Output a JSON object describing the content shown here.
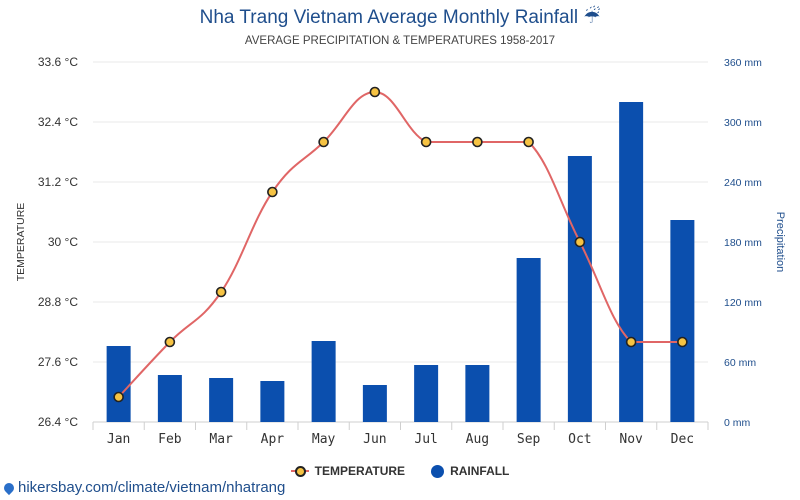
{
  "title": "Nha Trang Vietnam Average Monthly Rainfall ☔",
  "subtitle": "AVERAGE PRECIPITATION & TEMPERATURES 1958-2017",
  "source": "hikersbay.com/climate/vietnam/nhatrang",
  "colors": {
    "bar": "#0b4fae",
    "line": "#e06666",
    "marker": "#f6c343",
    "title": "#1f4e8c"
  },
  "chart_data": {
    "type": "bar+line",
    "categories": [
      "Jan",
      "Feb",
      "Mar",
      "Apr",
      "May",
      "Jun",
      "Jul",
      "Aug",
      "Sep",
      "Oct",
      "Nov",
      "Dec"
    ],
    "series": [
      {
        "name": "TEMPERATURE",
        "axis": "left",
        "type": "line",
        "values": [
          26.9,
          28.0,
          29.0,
          31.0,
          32.0,
          33.0,
          32.0,
          32.0,
          32.0,
          30.0,
          28.0,
          28.0
        ]
      },
      {
        "name": "RAINFALL",
        "axis": "right",
        "type": "bar",
        "values": [
          76,
          47,
          44,
          41,
          81,
          37,
          57,
          57,
          164,
          266,
          320,
          202
        ]
      }
    ],
    "ylabel_left": "TEMPERATURE",
    "ylabel_right": "Precipitation",
    "ylim_left": [
      26.4,
      33.6
    ],
    "ylim_right": [
      0,
      360
    ],
    "yticks_left": [
      "26.4 °C",
      "27.6 °C",
      "28.8 °C",
      "30 °C",
      "31.2 °C",
      "32.4 °C",
      "33.6 °C"
    ],
    "yticks_right": [
      "0 mm",
      "60 mm",
      "120 mm",
      "180 mm",
      "240 mm",
      "300 mm",
      "360 mm"
    ],
    "legend": [
      "TEMPERATURE",
      "RAINFALL"
    ],
    "legend_position": "bottom-center",
    "grid": true
  }
}
